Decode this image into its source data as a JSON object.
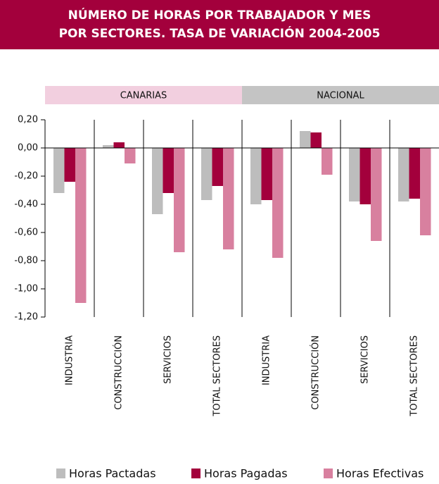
{
  "chart_data": {
    "type": "bar",
    "title": [
      "NÚMERO DE HORAS POR TRABAJADOR Y MES",
      "POR SECTORES. TASA DE VARIACIÓN 2004-2005"
    ],
    "groups": [
      "CANARIAS",
      "NACIONAL"
    ],
    "group_colors": [
      "#f2cfdf",
      "#c4c4c4"
    ],
    "categories": [
      "INDUSTRIA",
      "CONSTRUCCIÓN",
      "SERVICIOS",
      "TOTAL SECTORES",
      "INDUSTRIA",
      "CONSTRUCCIÓN",
      "SERVICIOS",
      "TOTAL SECTORES"
    ],
    "series": [
      {
        "name": "Horas Pactadas",
        "color": "#bdbdbd",
        "values": [
          -0.32,
          0.02,
          -0.47,
          -0.37,
          -0.4,
          0.12,
          -0.38,
          -0.38
        ]
      },
      {
        "name": "Horas Pagadas",
        "color": "#a3003c",
        "values": [
          -0.24,
          0.04,
          -0.32,
          -0.27,
          -0.37,
          0.11,
          -0.4,
          -0.36
        ]
      },
      {
        "name": "Horas Efectivas",
        "color": "#d8809f",
        "values": [
          -1.1,
          -0.11,
          -0.74,
          -0.72,
          -0.78,
          -0.19,
          -0.66,
          -0.62
        ]
      }
    ],
    "ylim": [
      -1.2,
      0.2
    ],
    "yticks": [
      {
        "value": 0.2,
        "label": "0,20"
      },
      {
        "value": 0,
        "label": "0,00"
      },
      {
        "value": -0.2,
        "label": "-0,20"
      },
      {
        "value": -0.4,
        "label": "-0,40"
      },
      {
        "value": -0.6,
        "label": "-0,60"
      },
      {
        "value": -0.8,
        "label": "-0,80"
      },
      {
        "value": -1.0,
        "label": "-1,00"
      },
      {
        "value": -1.2,
        "label": "-1,20"
      }
    ],
    "grid": false
  }
}
